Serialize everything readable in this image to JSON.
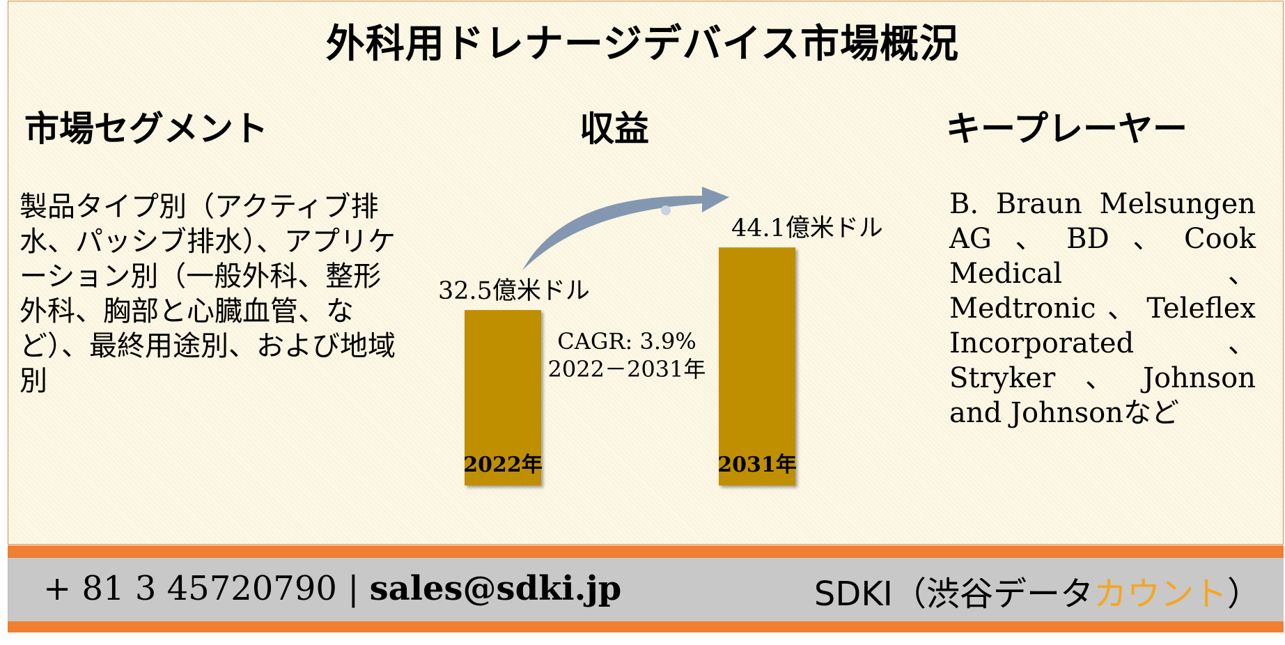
{
  "title": "外科用ドレナージデバイス市場概況",
  "sections": {
    "segments": {
      "heading": "市場セグメント",
      "text": "製品タイプ別（アクティブ排水、パッシブ排水）、アプリケーション別（一般外科、整形外科、胸部と心臓血管、など）、最終用途別、および地域別"
    },
    "revenue": {
      "heading": "収益"
    },
    "key_players": {
      "heading": "キープレーヤー",
      "text": "B. Braun Melsungen AG、BD、Cook Medical、Medtronic、Teleflex Incorporated、Stryker、Johnson and Johnsonなど"
    }
  },
  "chart_data": {
    "type": "bar",
    "categories": [
      "2022年",
      "2031年"
    ],
    "values": [
      32.5,
      44.1
    ],
    "value_labels": [
      "32.5億米ドル",
      "44.1億米ドル"
    ],
    "unit": "億米ドル",
    "bar_color": "#bf8f00",
    "arrow_color": "#8497b0",
    "cagr": "CAGR: 3.9%",
    "period": "2022－2031年"
  },
  "footer": {
    "phone": "+ 81 3 45720790",
    "separator": "|",
    "email": "sales@sdki.jp",
    "brand_main": "SDKI（渋谷データ",
    "brand_accent": "カウント",
    "brand_end": "）"
  },
  "colors": {
    "panel_bg": "#fdf8e6",
    "border": "#d98a3c",
    "footer_band": "#ee7f33",
    "footer_bg": "#c8c8c8",
    "brand_accent": "#f5a623"
  }
}
